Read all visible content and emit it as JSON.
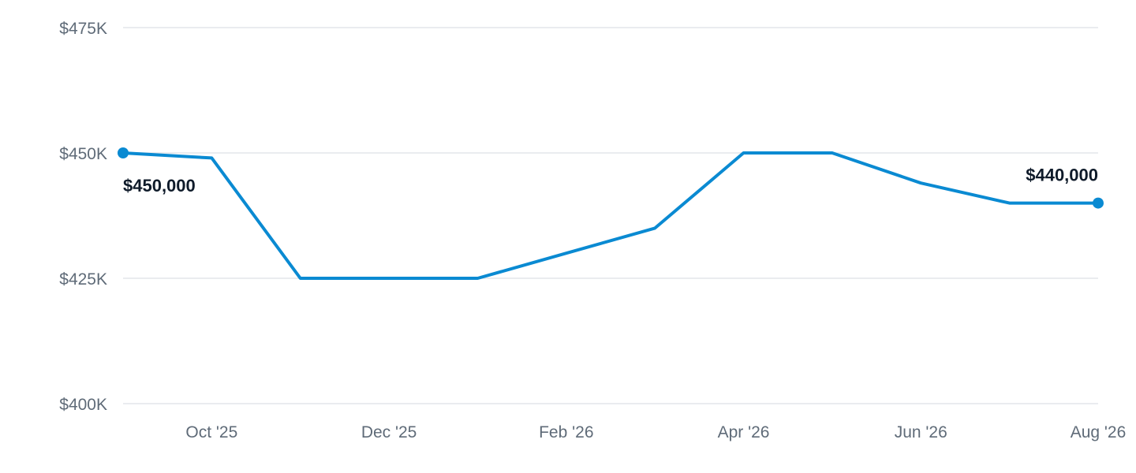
{
  "chart_data": {
    "type": "line",
    "title": "",
    "xlabel": "",
    "ylabel": "",
    "x": [
      "2025-09",
      "2025-10",
      "2025-11",
      "2025-12",
      "2026-01",
      "2026-02",
      "2026-03",
      "2026-04",
      "2026-05",
      "2026-06",
      "2026-07",
      "2026-08"
    ],
    "series": [
      {
        "values": [
          450000,
          449000,
          425000,
          425000,
          425000,
          430000,
          435000,
          450000,
          450000,
          444000,
          440000,
          440000
        ]
      }
    ],
    "ylim": [
      400000,
      475000
    ],
    "y_ticks": [
      {
        "value": 475000,
        "label": "$475K"
      },
      {
        "value": 450000,
        "label": "$450K"
      },
      {
        "value": 425000,
        "label": "$425K"
      },
      {
        "value": 400000,
        "label": "$400K"
      }
    ],
    "x_ticks": [
      {
        "x": "2025-10",
        "label": "Oct '25"
      },
      {
        "x": "2025-12",
        "label": "Dec '25"
      },
      {
        "x": "2026-02",
        "label": "Feb '26"
      },
      {
        "x": "2026-04",
        "label": "Apr '26"
      },
      {
        "x": "2026-06",
        "label": "Jun '26"
      },
      {
        "x": "2026-08",
        "label": "Aug '26"
      }
    ],
    "annotations": [
      {
        "x": "2025-09",
        "label": "$450,000"
      },
      {
        "x": "2026-08",
        "label": "$440,000"
      }
    ],
    "grid": true,
    "colors": {
      "line": "#0a8ad2",
      "grid": "#e3e6ea",
      "tick_text": "#5f6b78",
      "annotation_text": "#0f1b2a"
    }
  }
}
